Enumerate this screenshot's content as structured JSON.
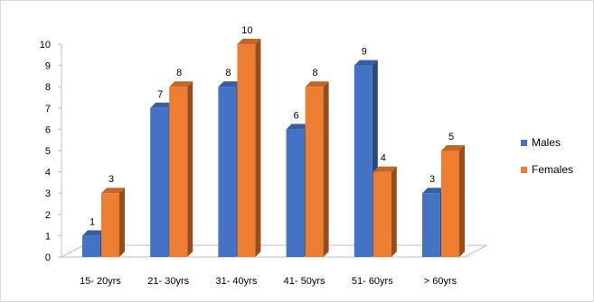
{
  "chart_data": {
    "type": "bar",
    "title": "",
    "xlabel": "",
    "ylabel": "",
    "ylim": [
      0,
      10
    ],
    "yticks": [
      "0",
      "1",
      "2",
      "3",
      "4",
      "5",
      "6",
      "7",
      "8",
      "9",
      "10"
    ],
    "categories": [
      "15- 20yrs",
      "21- 30yrs",
      "31- 40yrs",
      "41- 50yrs",
      "51- 60yrs",
      "> 60yrs"
    ],
    "series": [
      {
        "name": "Males",
        "values": [
          1,
          7,
          8,
          6,
          9,
          3
        ],
        "color": "#4472C4"
      },
      {
        "name": "Females",
        "values": [
          3,
          8,
          10,
          8,
          4,
          5
        ],
        "color": "#ED7D31"
      }
    ],
    "grid": false,
    "legend_position": "right",
    "style": "3d-clustered-column"
  }
}
